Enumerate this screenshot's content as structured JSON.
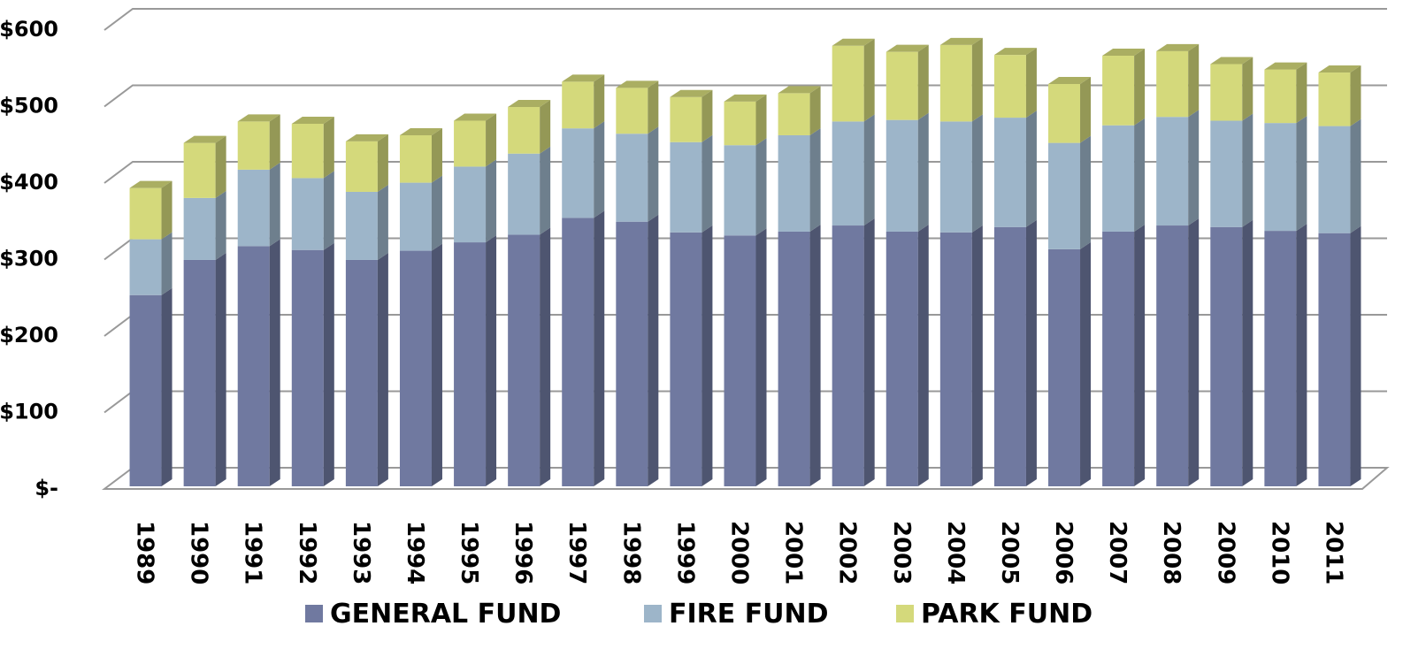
{
  "chart_data": {
    "type": "bar3d_stacked",
    "categories": [
      "1989",
      "1990",
      "1991",
      "1992",
      "1993",
      "1994",
      "1995",
      "1996",
      "1997",
      "1998",
      "1999",
      "2000",
      "2001",
      "2002",
      "2003",
      "2004",
      "2005",
      "2006",
      "2007",
      "2008",
      "2009",
      "2010",
      "2011"
    ],
    "series": [
      {
        "name": "GENERAL FUND",
        "color": "#7079a0",
        "values": [
          250,
          296,
          314,
          309,
          296,
          308,
          319,
          329,
          351,
          346,
          332,
          328,
          333,
          341,
          333,
          332,
          339,
          310,
          333,
          341,
          339,
          334,
          331
        ]
      },
      {
        "name": "FIRE FUND",
        "color": "#9db5c9",
        "values": [
          73,
          81,
          100,
          94,
          89,
          89,
          99,
          106,
          117,
          115,
          118,
          118,
          126,
          136,
          146,
          145,
          143,
          139,
          139,
          142,
          139,
          141,
          140
        ]
      },
      {
        "name": "PARK FUND",
        "color": "#d4d97b",
        "values": [
          67,
          72,
          63,
          71,
          66,
          62,
          60,
          61,
          61,
          60,
          59,
          57,
          55,
          99,
          89,
          100,
          82,
          77,
          91,
          86,
          74,
          70,
          70
        ]
      }
    ],
    "ylim": [
      0,
      600
    ],
    "yticks": [
      {
        "value": 0,
        "label": "$-"
      },
      {
        "value": 100,
        "label": "$100"
      },
      {
        "value": 200,
        "label": "$200"
      },
      {
        "value": 300,
        "label": "$300"
      },
      {
        "value": 400,
        "label": "$400"
      },
      {
        "value": 500,
        "label": "$500"
      },
      {
        "value": 600,
        "label": "$600"
      }
    ],
    "grid": true,
    "legend": "bottom"
  }
}
